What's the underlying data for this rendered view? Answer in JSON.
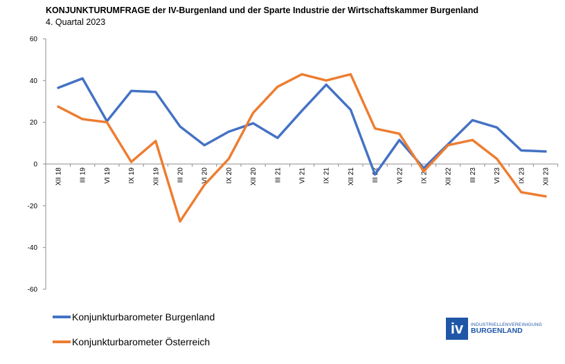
{
  "header": {
    "title": "KONJUNKTURUMFRAGE der IV-Burgenland und der Sparte Industrie der Wirtschaftskammer Burgenland",
    "subtitle": "4. Quartal 2023"
  },
  "legend": {
    "items": [
      {
        "label": "Konjunkturbarometer Burgenland",
        "color": "#4472c4"
      },
      {
        "label": "Konjunkturbarometer Österreich",
        "color": "#ed7d31"
      }
    ]
  },
  "logo": {
    "mark": "iv",
    "line1": "INDUSTRIELLENVEREINIGUNG",
    "line2": "BURGENLAND",
    "color": "#1f56a8"
  },
  "chart_data": {
    "type": "line",
    "categories": [
      "XII 18",
      "III 19",
      "VI 19",
      "IX 19",
      "XII 19",
      "III 20",
      "VI 20",
      "IX 20",
      "XII 20",
      "III 21",
      "VI 21",
      "IX 21",
      "XII 21",
      "III 22",
      "VI 22",
      "IX 22",
      "XII 22",
      "III 23",
      "VI 23",
      "IX 23",
      "XII 23"
    ],
    "series": [
      {
        "name": "Konjunkturbarometer Burgenland",
        "color": "#4472c4",
        "values": [
          36.5,
          41,
          20.5,
          35,
          34.5,
          18,
          9,
          15.5,
          19.5,
          12.5,
          25.5,
          38,
          26,
          -5,
          11.5,
          -2,
          9.5,
          21,
          17.5,
          6.5,
          6
        ]
      },
      {
        "name": "Konjunkturbarometer Österreich",
        "color": "#ed7d31",
        "values": [
          27.5,
          21.5,
          20,
          1,
          11,
          -27.5,
          -10,
          2.5,
          24.5,
          37,
          43,
          40,
          43,
          17,
          14.5,
          -3.5,
          9,
          11.5,
          2.5,
          -13.5,
          -15.5
        ]
      }
    ],
    "ylim": [
      -60,
      60
    ],
    "yticks": [
      60,
      40,
      20,
      0,
      -20,
      -40,
      -60
    ],
    "grid": false,
    "legend_position": "bottom-left"
  }
}
